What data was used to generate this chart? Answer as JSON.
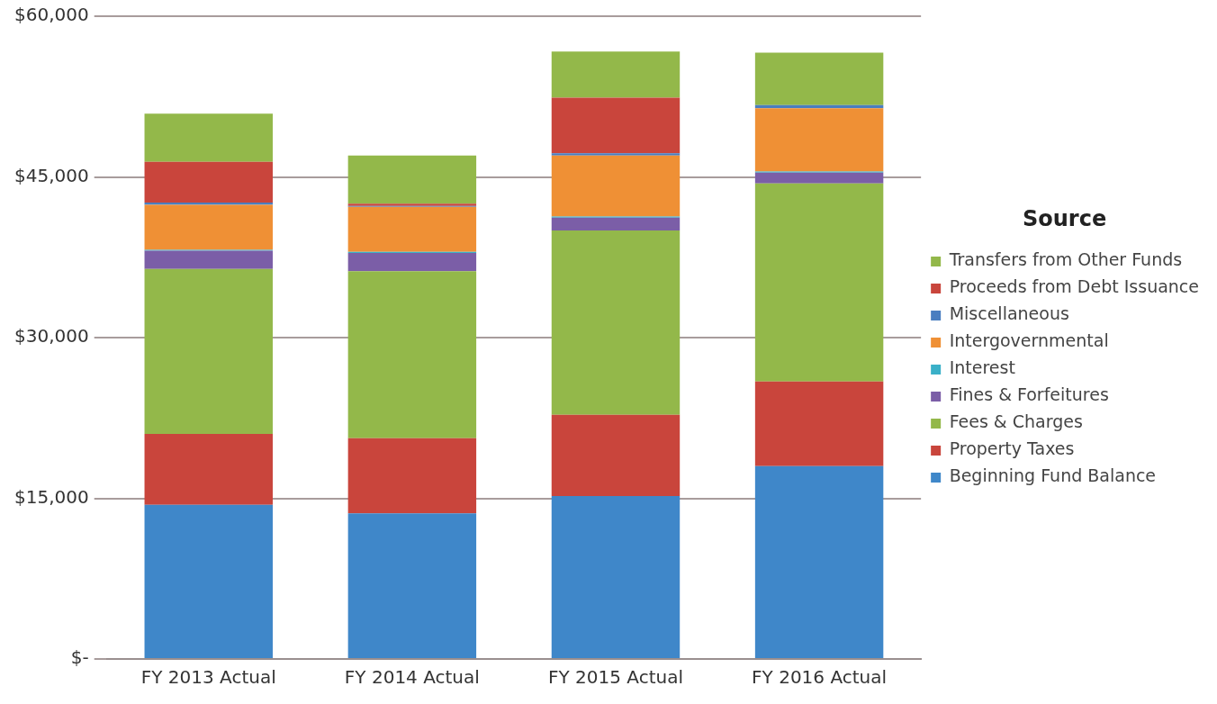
{
  "chart_data": {
    "type": "bar",
    "stacked": true,
    "categories": [
      "FY 2013 Actual",
      "FY 2014 Actual",
      "FY 2015 Actual",
      "FY 2016 Actual"
    ],
    "series": [
      {
        "name": "Beginning Fund Balance",
        "color": "#3f87c9",
        "values": [
          14400,
          13600,
          15200,
          18000
        ]
      },
      {
        "name": "Property Taxes",
        "color": "#c9453c",
        "values": [
          6600,
          7000,
          7600,
          7900
        ]
      },
      {
        "name": "Fees & Charges",
        "color": "#93b84a",
        "values": [
          15400,
          15600,
          17200,
          18500
        ]
      },
      {
        "name": "Fines & Forfeitures",
        "color": "#7b5ea7",
        "values": [
          1700,
          1700,
          1200,
          1000
        ]
      },
      {
        "name": "Interest",
        "color": "#3ab0c8",
        "values": [
          100,
          100,
          100,
          100
        ]
      },
      {
        "name": "Intergovernmental",
        "color": "#ef9035",
        "values": [
          4200,
          4200,
          5700,
          5900
        ]
      },
      {
        "name": "Miscellaneous",
        "color": "#4a7ec0",
        "values": [
          200,
          100,
          200,
          300
        ]
      },
      {
        "name": "Proceeds from Debt Issuance",
        "color": "#c9453c",
        "values": [
          3800,
          200,
          5200,
          0
        ]
      },
      {
        "name": "Transfers from Other Funds",
        "color": "#93b84a",
        "values": [
          4500,
          4500,
          4300,
          4900
        ]
      }
    ],
    "ylim": [
      0,
      60000
    ],
    "yticks": [
      {
        "value": 0,
        "label": "$-"
      },
      {
        "value": 15000,
        "label": "$15,000"
      },
      {
        "value": 30000,
        "label": "$30,000"
      },
      {
        "value": 45000,
        "label": "$45,000"
      },
      {
        "value": 60000,
        "label": "$60,000"
      }
    ],
    "grid": "y",
    "legend": "right",
    "legend_title": "Source"
  }
}
